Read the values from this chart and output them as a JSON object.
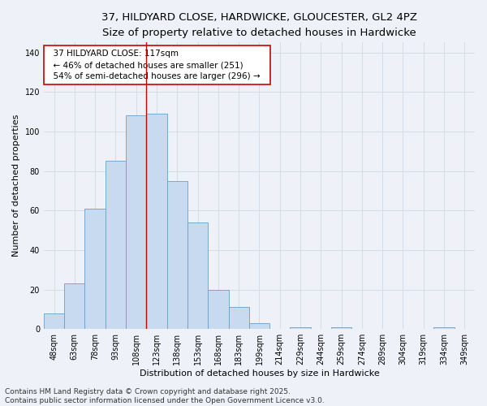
{
  "title_line1": "37, HILDYARD CLOSE, HARDWICKE, GLOUCESTER, GL2 4PZ",
  "title_line2": "Size of property relative to detached houses in Hardwicke",
  "xlabel": "Distribution of detached houses by size in Hardwicke",
  "ylabel": "Number of detached properties",
  "bar_labels": [
    "48sqm",
    "63sqm",
    "78sqm",
    "93sqm",
    "108sqm",
    "123sqm",
    "138sqm",
    "153sqm",
    "168sqm",
    "183sqm",
    "199sqm",
    "214sqm",
    "229sqm",
    "244sqm",
    "259sqm",
    "274sqm",
    "289sqm",
    "304sqm",
    "319sqm",
    "334sqm",
    "349sqm"
  ],
  "bar_values": [
    8,
    23,
    61,
    85,
    108,
    109,
    75,
    54,
    20,
    11,
    3,
    0,
    1,
    0,
    1,
    0,
    0,
    0,
    0,
    1,
    0
  ],
  "bar_color": "#c8daf0",
  "bar_edge_color": "#6a9fc8",
  "grid_color": "#d4dce8",
  "background_color": "#eef2f8",
  "red_line_x": 4.5,
  "annotation_text": "  37 HILDYARD CLOSE: 117sqm  \n  ← 46% of detached houses are smaller (251)  \n  54% of semi-detached houses are larger (296) →  ",
  "ylim": [
    0,
    145
  ],
  "yticks": [
    0,
    20,
    40,
    60,
    80,
    100,
    120,
    140
  ],
  "footer_text": "Contains HM Land Registry data © Crown copyright and database right 2025.\nContains public sector information licensed under the Open Government Licence v3.0.",
  "title_fontsize": 9.5,
  "subtitle_fontsize": 8.5,
  "axis_label_fontsize": 8,
  "tick_fontsize": 7,
  "annotation_fontsize": 7.5,
  "footer_fontsize": 6.5
}
